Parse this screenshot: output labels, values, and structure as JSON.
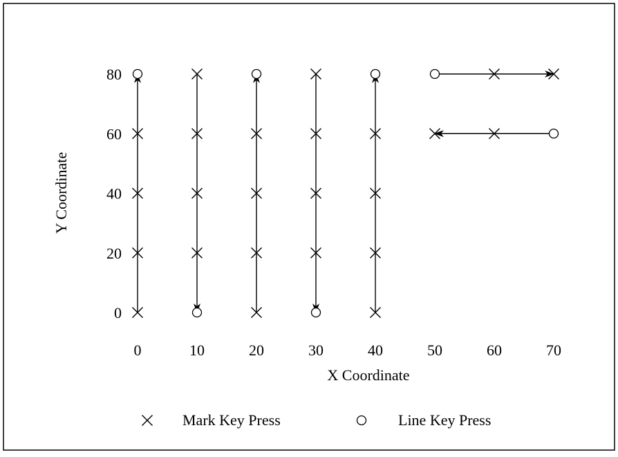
{
  "chart_data": {
    "type": "scatter",
    "title": "",
    "xlabel": "X Coordinate",
    "ylabel": "Y Coordinate",
    "xlim": [
      0,
      70
    ],
    "ylim": [
      0,
      80
    ],
    "x_ticks": [
      0,
      10,
      20,
      30,
      40,
      50,
      60,
      70
    ],
    "y_ticks": [
      0,
      20,
      40,
      60,
      80
    ],
    "grid": false,
    "legend_placement": "bottom",
    "legend": [
      {
        "label": "Mark Key Press",
        "marker": "cross"
      },
      {
        "label": "Line Key Press",
        "marker": "circle"
      }
    ],
    "series": [
      {
        "name": "Mark Key Press",
        "marker": "cross",
        "points": [
          [
            0,
            0
          ],
          [
            0,
            20
          ],
          [
            0,
            40
          ],
          [
            0,
            60
          ],
          [
            10,
            20
          ],
          [
            10,
            40
          ],
          [
            10,
            60
          ],
          [
            10,
            80
          ],
          [
            20,
            0
          ],
          [
            20,
            20
          ],
          [
            20,
            40
          ],
          [
            20,
            60
          ],
          [
            30,
            20
          ],
          [
            30,
            40
          ],
          [
            30,
            60
          ],
          [
            30,
            80
          ],
          [
            40,
            0
          ],
          [
            40,
            20
          ],
          [
            40,
            40
          ],
          [
            40,
            60
          ],
          [
            50,
            60
          ],
          [
            60,
            60
          ],
          [
            60,
            80
          ],
          [
            70,
            80
          ]
        ]
      },
      {
        "name": "Line Key Press",
        "marker": "circle",
        "points": [
          [
            0,
            80
          ],
          [
            10,
            0
          ],
          [
            20,
            80
          ],
          [
            30,
            0
          ],
          [
            40,
            80
          ],
          [
            50,
            80
          ],
          [
            70,
            60
          ]
        ]
      }
    ],
    "arrows": [
      {
        "from": [
          0,
          0
        ],
        "to": [
          0,
          80
        ]
      },
      {
        "from": [
          10,
          80
        ],
        "to": [
          10,
          0
        ]
      },
      {
        "from": [
          20,
          0
        ],
        "to": [
          20,
          80
        ]
      },
      {
        "from": [
          30,
          80
        ],
        "to": [
          30,
          0
        ]
      },
      {
        "from": [
          40,
          0
        ],
        "to": [
          40,
          80
        ]
      },
      {
        "from": [
          50,
          80
        ],
        "to": [
          70,
          80
        ]
      },
      {
        "from": [
          70,
          60
        ],
        "to": [
          50,
          60
        ]
      }
    ]
  }
}
